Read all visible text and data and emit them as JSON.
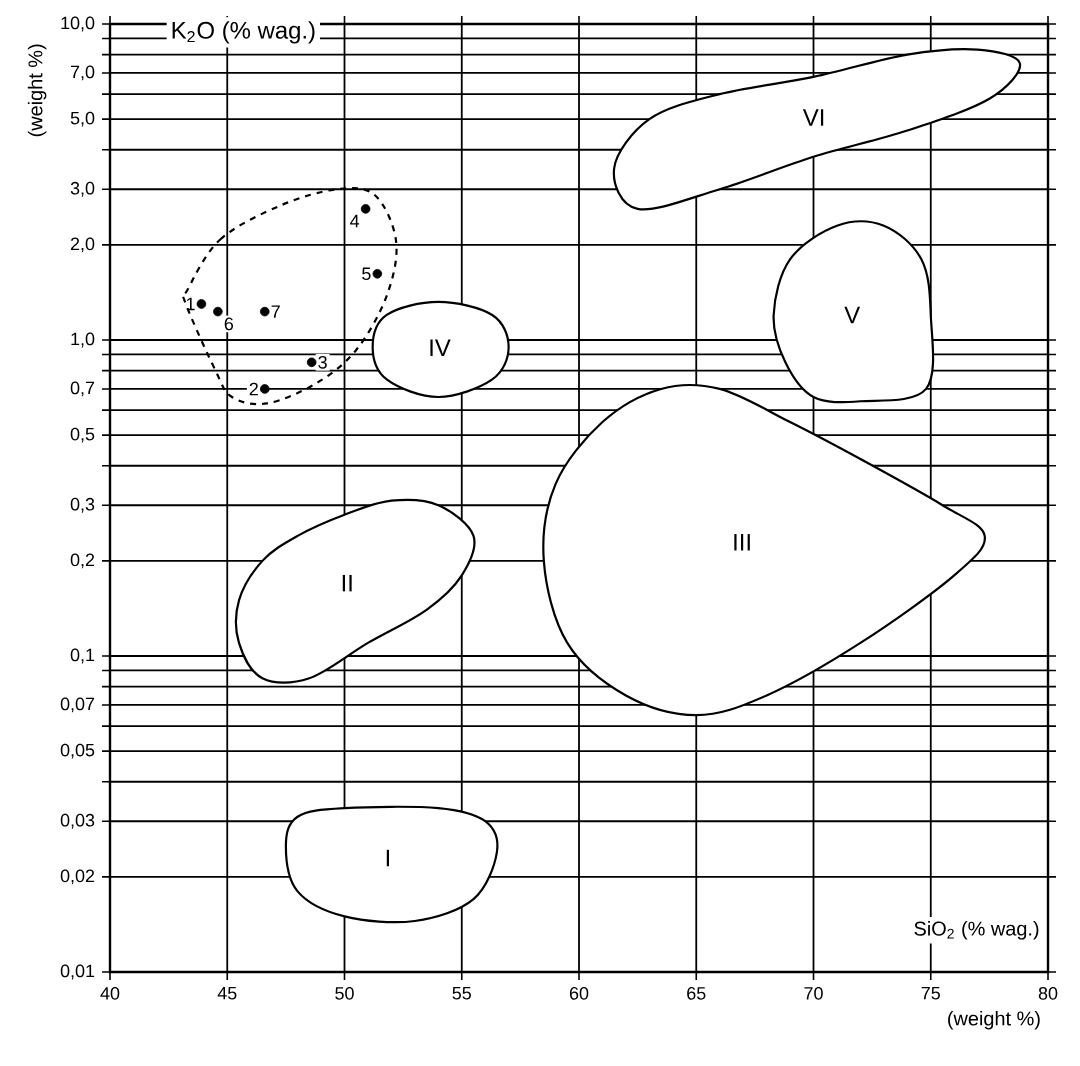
{
  "chart_data": {
    "type": "scatter",
    "title": "K$_{2}$O (% wag.)",
    "ylabel": "(weight %)",
    "xlabel": "(weight %)",
    "annotations": [
      "SiO$_{2}$ (% wag.)",
      "I",
      "II",
      "III",
      "IV",
      "V",
      "VI",
      {
        "text": "1",
        "x": 43.9,
        "y": 1.3
      },
      {
        "text": "6",
        "x": 44.6,
        "y": 1.23
      },
      {
        "text": "7",
        "x": 46.6,
        "y": 1.23
      },
      {
        "text": "2",
        "x": 46.6,
        "y": 0.7
      },
      {
        "text": "3",
        "x": 48.6,
        "y": 0.85
      },
      {
        "text": "5",
        "x": 51.4,
        "y": 1.62
      },
      {
        "text": "4",
        "x": 50.9,
        "y": 2.6
      }
    ],
    "log": "y",
    "grid": true,
    "marker": "circle",
    "color": "#000000",
    "xlim": [
      40,
      80
    ],
    "xticks": [
      40,
      45,
      50,
      55,
      60,
      65,
      70,
      75,
      80
    ],
    "ylim": [
      0.01,
      10
    ],
    "yticks": [
      {
        "value": 0.01,
        "label": "0,01"
      },
      {
        "value": 0.02,
        "label": "0,02"
      },
      {
        "value": 0.03,
        "label": "0,03"
      },
      {
        "value": 0.04,
        "label": null
      },
      {
        "value": 0.05,
        "label": "0,05"
      },
      {
        "value": 0.06,
        "label": null
      },
      {
        "value": 0.07,
        "label": "0,07"
      },
      {
        "value": 0.08,
        "label": null
      },
      {
        "value": 0.09,
        "label": null
      },
      {
        "value": 0.1,
        "label": "0,1"
      },
      {
        "value": 0.2,
        "label": "0,2"
      },
      {
        "value": 0.3,
        "label": "0,3"
      },
      {
        "value": 0.4,
        "label": null
      },
      {
        "value": 0.5,
        "label": "0,5"
      },
      {
        "value": 0.6,
        "label": null
      },
      {
        "value": 0.7,
        "label": "0,7"
      },
      {
        "value": 0.8,
        "label": null
      },
      {
        "value": 0.9,
        "label": null
      },
      {
        "value": 1.0,
        "label": "1,0"
      },
      {
        "value": 2.0,
        "label": "2,0"
      },
      {
        "value": 3.0,
        "label": "3,0"
      },
      {
        "value": 4.0,
        "label": null
      },
      {
        "value": 5.0,
        "label": "5,0"
      },
      {
        "value": 6.0,
        "label": null
      },
      {
        "value": 7.0,
        "label": "7,0"
      },
      {
        "value": 8.0,
        "label": null
      },
      {
        "value": 9.0,
        "label": null
      },
      {
        "value": 10.0,
        "label": "10,0"
      }
    ],
    "x": [
      43.9,
      44.6,
      46.6,
      46.6,
      48.6,
      51.4,
      50.9
    ],
    "values": [
      1.3,
      1.23,
      1.23,
      0.7,
      0.85,
      1.62,
      2.6
    ]
  }
}
